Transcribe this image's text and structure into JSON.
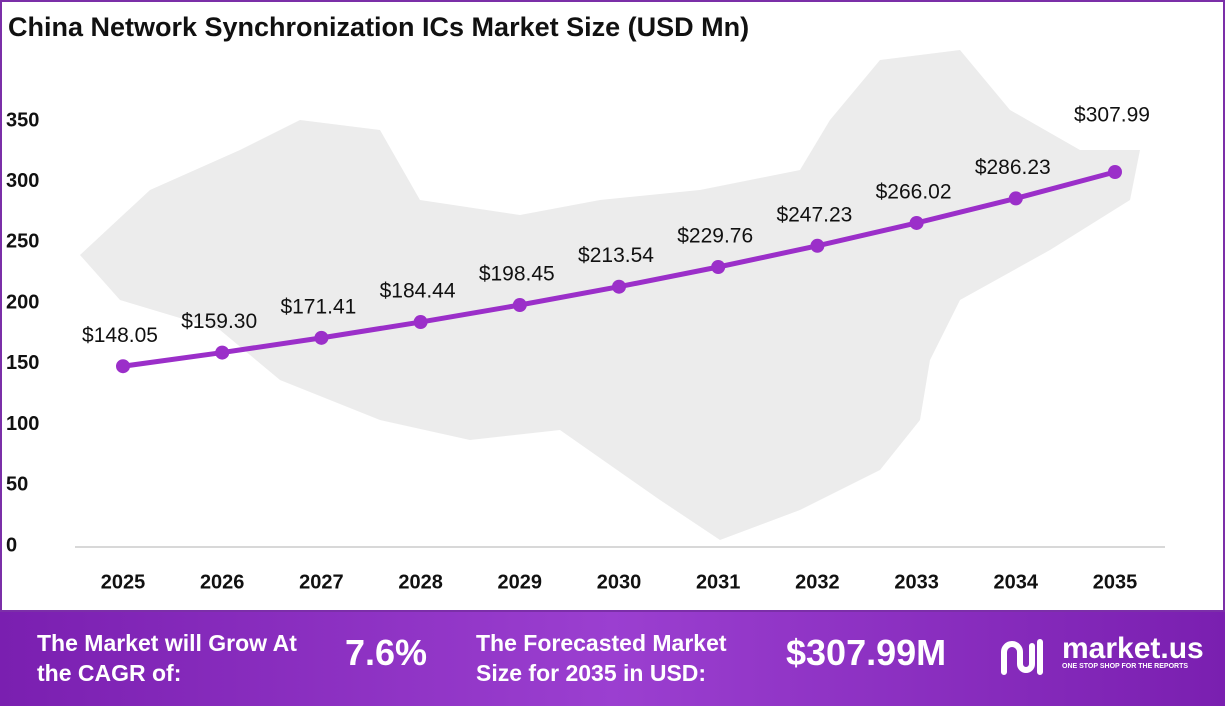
{
  "chart_data": {
    "type": "line",
    "title": "China Network Synchronization ICs Market Size (USD Mn)",
    "categories": [
      "2025",
      "2026",
      "2027",
      "2028",
      "2029",
      "2030",
      "2031",
      "2032",
      "2033",
      "2034",
      "2035"
    ],
    "series": [
      {
        "name": "Market Size",
        "color": "#9b2fc9",
        "values": [
          148.05,
          159.3,
          171.41,
          184.44,
          198.45,
          213.54,
          229.76,
          247.23,
          266.02,
          286.23,
          307.99
        ],
        "value_labels": [
          "$148.05",
          "$159.30",
          "$171.41",
          "$184.44",
          "$198.45",
          "$213.54",
          "$229.76",
          "$247.23",
          "$266.02",
          "$286.23",
          "$307.99"
        ]
      }
    ],
    "ylim": [
      0,
      350
    ],
    "yticks": [
      0,
      50,
      100,
      150,
      200,
      250,
      300,
      350
    ],
    "grid": false
  },
  "footer": {
    "cagr_text": "The Market will Grow At the CAGR of:",
    "cagr_value": "7.6%",
    "forecast_text": "The Forecasted Market Size for 2035 in USD:",
    "forecast_value": "$307.99M",
    "brand": "market.us",
    "tagline": "ONE STOP SHOP FOR THE REPORTS"
  }
}
